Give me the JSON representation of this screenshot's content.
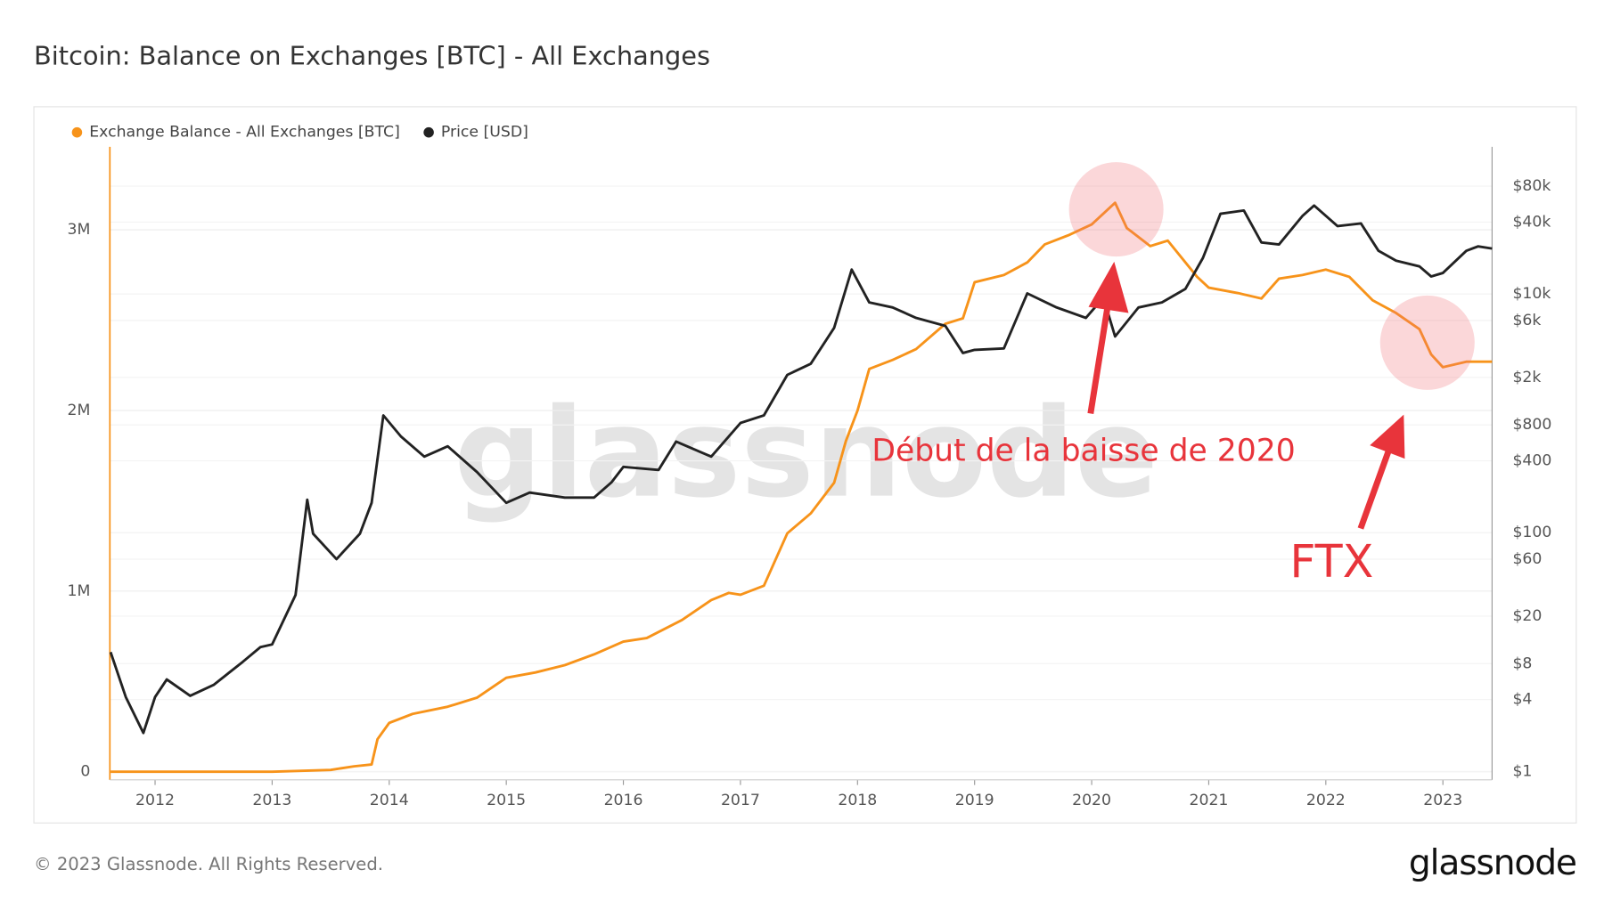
{
  "chart_data": {
    "type": "line",
    "title": "Bitcoin: Balance on Exchanges [BTC] - All Exchanges",
    "watermark": "glassnode",
    "footer": "© 2023 Glassnode. All Rights Reserved.",
    "logo": "glassnode",
    "annotations": [
      "Début de la baisse de 2020",
      "FTX"
    ],
    "xlim": [
      2011.614,
      2023.42
    ],
    "xticks": [
      2012,
      2013,
      2014,
      2015,
      2016,
      2017,
      2018,
      2019,
      2020,
      2021,
      2022,
      2023
    ],
    "ylim": [
      -45000,
      3460000
    ],
    "yticks": [
      0,
      {
        "value": 1000000,
        "label": "1M"
      },
      {
        "value": 2000000,
        "label": "2M"
      },
      {
        "value": 3000000,
        "label": "3M"
      }
    ],
    "y2lim": [
      0.85,
      171000
    ],
    "y2log": true,
    "y2ticks": [
      {
        "value": 1,
        "label": "$1"
      },
      {
        "value": 4,
        "label": "$4"
      },
      {
        "value": 8,
        "label": "$8"
      },
      {
        "value": 20,
        "label": "$20"
      },
      {
        "value": 60,
        "label": "$60"
      },
      {
        "value": 100,
        "label": "$100"
      },
      {
        "value": 400,
        "label": "$400"
      },
      {
        "value": 800,
        "label": "$800"
      },
      {
        "value": 2000,
        "label": "$2k"
      },
      {
        "value": 6000,
        "label": "$6k"
      },
      {
        "value": 10000,
        "label": "$10k"
      },
      {
        "value": 40000,
        "label": "$40k"
      },
      {
        "value": 80000,
        "label": "$80k"
      }
    ],
    "grid": true,
    "series": [
      {
        "name": "Exchange Balance - All Exchanges [BTC]",
        "color": "#f7931a",
        "x": [
          2011.62,
          2013.0,
          2013.5,
          2013.7,
          2013.85,
          2013.9,
          2014.0,
          2014.2,
          2014.5,
          2014.75,
          2015.0,
          2015.25,
          2015.5,
          2015.75,
          2016.0,
          2016.2,
          2016.5,
          2016.75,
          2016.9,
          2017.0,
          2017.2,
          2017.4,
          2017.6,
          2017.8,
          2017.9,
          2018.0,
          2018.1,
          2018.3,
          2018.5,
          2018.75,
          2018.9,
          2019.0,
          2019.25,
          2019.45,
          2019.6,
          2019.8,
          2020.0,
          2020.2,
          2020.3,
          2020.5,
          2020.65,
          2020.9,
          2021.0,
          2021.25,
          2021.45,
          2021.6,
          2021.8,
          2022.0,
          2022.2,
          2022.4,
          2022.6,
          2022.8,
          2022.9,
          2023.0,
          2023.2,
          2023.42
        ],
        "values": [
          0,
          0,
          10000,
          30000,
          40000,
          180000,
          270000,
          320000,
          360000,
          410000,
          520000,
          550000,
          590000,
          650000,
          720000,
          740000,
          840000,
          950000,
          990000,
          980000,
          1030000,
          1320000,
          1430000,
          1600000,
          1830000,
          2000000,
          2230000,
          2280000,
          2340000,
          2480000,
          2510000,
          2710000,
          2750000,
          2820000,
          2920000,
          2970000,
          3030000,
          3150000,
          3010000,
          2910000,
          2940000,
          2740000,
          2680000,
          2650000,
          2620000,
          2730000,
          2750000,
          2780000,
          2740000,
          2610000,
          2540000,
          2450000,
          2310000,
          2240000,
          2270000,
          2270000
        ]
      },
      {
        "name": "Price [USD]",
        "color": "#222222",
        "axis": "y2",
        "x": [
          2011.62,
          2011.75,
          2011.9,
          2012.0,
          2012.1,
          2012.3,
          2012.5,
          2012.75,
          2012.9,
          2013.0,
          2013.2,
          2013.3,
          2013.35,
          2013.55,
          2013.75,
          2013.85,
          2013.95,
          2014.1,
          2014.3,
          2014.5,
          2014.75,
          2015.0,
          2015.2,
          2015.5,
          2015.75,
          2015.9,
          2016.0,
          2016.3,
          2016.45,
          2016.75,
          2017.0,
          2017.2,
          2017.4,
          2017.6,
          2017.8,
          2017.95,
          2018.1,
          2018.3,
          2018.5,
          2018.75,
          2018.9,
          2019.0,
          2019.25,
          2019.45,
          2019.7,
          2019.95,
          2020.1,
          2020.2,
          2020.4,
          2020.6,
          2020.8,
          2020.95,
          2021.1,
          2021.3,
          2021.45,
          2021.6,
          2021.8,
          2021.9,
          2022.1,
          2022.3,
          2022.45,
          2022.6,
          2022.8,
          2022.9,
          2023.0,
          2023.2,
          2023.3,
          2023.42
        ],
        "values": [
          10,
          4.2,
          2.1,
          4.2,
          5.9,
          4.3,
          5.3,
          8.3,
          11,
          11.6,
          30,
          189,
          98,
          60,
          98,
          178,
          960,
          640,
          434,
          530,
          322,
          178,
          217,
          197,
          197,
          265,
          356,
          335,
          580,
          434,
          830,
          960,
          2100,
          2600,
          5200,
          16000,
          8500,
          7700,
          6300,
          5400,
          3200,
          3400,
          3500,
          10100,
          7700,
          6300,
          9300,
          4400,
          7700,
          8500,
          11000,
          20000,
          47000,
          50000,
          27000,
          26000,
          45000,
          55000,
          37000,
          39000,
          23000,
          19000,
          17000,
          14000,
          15000,
          23000,
          25000,
          24000
        ]
      }
    ]
  }
}
